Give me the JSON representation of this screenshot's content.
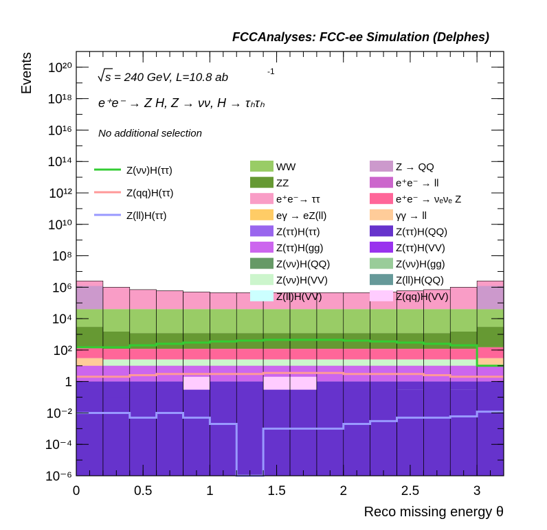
{
  "header_title": "FCCAnalyses: FCC-ee Simulation (Delphes)",
  "annotations": {
    "energy_prefix": "s",
    "energy_text": "= 240 GeV, L=10.8 ab",
    "lumi_exponent": "-1",
    "process_line": "e⁺e⁻ → Z H, Z → νν, H → τₕτₕ",
    "selection": "No additional selection"
  },
  "colors": {
    "WW": "#99cc66",
    "ZZ": "#669933",
    "ee_tautau": "#f99dc6",
    "egamma_eZll": "#ffcc66",
    "Ztautau_Htautau": "#9966ee",
    "Ztautau_Hgg": "#cc66ee",
    "Znunu_HQQ": "#669966",
    "Znunu_HVV": "#ccf5cc",
    "Zll_HVV": "#ccffff",
    "Z_QQ": "#cc99cc",
    "ee_ll": "#cc66cc",
    "ee_nunuZ": "#ff6699",
    "gammagamma_ll": "#ffcc99",
    "Ztautau_HQQ": "#6633cc",
    "Ztautau_HVV": "#9933ee",
    "Znunu_Hgg": "#99cc99",
    "Zll_HQQ": "#669999",
    "Zqq_HVV": "#ffccff",
    "Zqq_Htautau": "#ff9999",
    "Zll_Htautau": "#9999ff",
    "Znunu_Htautau": "#33cc33"
  },
  "chart_data": {
    "type": "histogram-stacked",
    "title": "FCCAnalyses: FCC-ee Simulation (Delphes)",
    "xlabel": "Reco missing energy θ",
    "ylabel": "Events",
    "xlim": [
      0,
      3.2
    ],
    "ylim": [
      1e-06,
      1e+21
    ],
    "log_y": true,
    "bin_edges": [
      0,
      0.2,
      0.4,
      0.6,
      0.8,
      1.0,
      1.2,
      1.4,
      1.6,
      1.8,
      2.0,
      2.2,
      2.4,
      2.6,
      2.8,
      3.0,
      3.2
    ],
    "x_ticks": [
      "0",
      "0.5",
      "1",
      "1.5",
      "2",
      "2.5",
      "3"
    ],
    "x_tick_values": [
      0,
      0.5,
      1,
      1.5,
      2,
      2.5,
      3
    ],
    "y_ticks": [
      "10⁻⁶",
      "10⁻⁴",
      "10⁻²",
      "1",
      "10²",
      "10⁴",
      "10⁶",
      "10⁸",
      "10¹⁰",
      "10¹²",
      "10¹⁴",
      "10¹⁶",
      "10¹⁸",
      "10²⁰"
    ],
    "y_tick_exponents": [
      -6,
      -4,
      -2,
      0,
      2,
      4,
      6,
      8,
      10,
      12,
      14,
      16,
      18,
      20
    ],
    "stack_total": [
      2500000.0,
      1000000.0,
      700000.0,
      600000.0,
      500000.0,
      450000.0,
      450000.0,
      450000.0,
      450000.0,
      450000.0,
      450000.0,
      500000.0,
      600000.0,
      700000.0,
      1000000.0,
      2500000.0
    ],
    "stack_boundaries_top": [
      [
        40000.0,
        40000.0,
        40000.0,
        40000.0,
        40000.0,
        40000.0,
        40000.0,
        40000.0,
        40000.0,
        40000.0,
        40000.0,
        40000.0,
        40000.0,
        40000.0,
        40000.0,
        40000.0
      ],
      [
        3000.0,
        1500.0,
        1200.0,
        1200.0,
        1200.0,
        1200.0,
        1200.0,
        1200.0,
        1200.0,
        1200.0,
        1200.0,
        1200.0,
        1200.0,
        1200.0,
        1500.0,
        3000.0
      ],
      [
        150,
        120,
        120,
        120,
        120,
        120,
        120,
        120,
        120,
        120,
        120,
        120,
        120,
        120,
        120,
        150
      ],
      [
        30,
        25,
        25,
        25,
        25,
        25,
        25,
        25,
        25,
        25,
        25,
        25,
        25,
        25,
        25,
        30
      ],
      [
        15,
        10,
        10,
        10,
        10,
        10,
        10,
        10,
        10,
        10,
        10,
        10,
        10,
        10,
        10,
        15
      ]
    ],
    "legend_lines": [
      "Z(qq)H(ττ)",
      "Z(ll)H(ττ)",
      "Z(νν)H(ττ)"
    ],
    "legend_boxes": [
      {
        "label": "WW",
        "color_key": "WW"
      },
      {
        "label": "Z → QQ",
        "color_key": "Z_QQ"
      },
      {
        "label": "ZZ",
        "color_key": "ZZ"
      },
      {
        "label": "e⁺e⁻ → ll",
        "color_key": "ee_ll"
      },
      {
        "label": "e⁺e⁻→ ττ",
        "color_key": "ee_tautau"
      },
      {
        "label": "e⁺e⁻ → νₑνₑ Z",
        "color_key": "ee_nunuZ"
      },
      {
        "label": "eγ → eZ(ll)",
        "color_key": "egamma_eZll"
      },
      {
        "label": "γγ → ll",
        "color_key": "gammagamma_ll"
      },
      {
        "label": "Z(ττ)H(ττ)",
        "color_key": "Ztautau_Htautau"
      },
      {
        "label": "Z(ττ)H(QQ)",
        "color_key": "Ztautau_HQQ"
      },
      {
        "label": "Z(ττ)H(gg)",
        "color_key": "Ztautau_Hgg"
      },
      {
        "label": "Z(ττ)H(VV)",
        "color_key": "Ztautau_HVV"
      },
      {
        "label": "Z(νν)H(QQ)",
        "color_key": "Znunu_HQQ"
      },
      {
        "label": "Z(νν)H(gg)",
        "color_key": "Znunu_Hgg"
      },
      {
        "label": "Z(νν)H(VV)",
        "color_key": "Znunu_HVV"
      },
      {
        "label": "Z(ll)H(QQ)",
        "color_key": "Zll_HQQ"
      },
      {
        "label": "Z(ll)H(VV)",
        "color_key": "Zll_HVV"
      },
      {
        "label": "Z(qq)H(VV)",
        "color_key": "Zqq_HVV"
      }
    ],
    "series": [
      {
        "name": "Z(νν)H(ττ)",
        "color_key": "Znunu_Htautau",
        "values": [
          150,
          150,
          200,
          250,
          300,
          350,
          400,
          450,
          450,
          450,
          400,
          350,
          300,
          250,
          200,
          10
        ]
      },
      {
        "name": "Z(qq)H(ττ)",
        "color_key": "Zqq_Htautau",
        "values": [
          2.0,
          2.0,
          2.5,
          3.0,
          3.0,
          3.0,
          3.0,
          3.5,
          3.5,
          3.5,
          3.0,
          3.0,
          3.0,
          2.5,
          2.0,
          2.0
        ]
      },
      {
        "name": "Z(ll)H(ττ)",
        "color_key": "Zll_Htautau",
        "values": [
          0.01,
          0.01,
          0.005,
          0.01,
          0.005,
          0.002,
          1e-06,
          0.001,
          0.001,
          0.001,
          0.002,
          0.003,
          0.005,
          0.005,
          0.006,
          0.012
        ]
      }
    ],
    "bottom_stack_top": [
      0.02,
      0.0002,
      0.3,
      0.03,
      0.3,
      0.03,
      0.03,
      0.03,
      0.3,
      0.03,
      0.03,
      0.03,
      0.03,
      0.3,
      0.03,
      0.03
    ],
    "lower_layers": [
      {
        "color_key": "Zll_HQQ",
        "values": [
          0.02,
          0.0002,
          1e-06,
          1e-06,
          1e-06,
          1e-06,
          1e-06,
          1e-06,
          1e-06,
          1e-06,
          1e-06,
          1e-06,
          1e-06,
          1e-06,
          1e-06,
          1e-06
        ]
      },
      {
        "color_key": "Zll_HVV",
        "values": [
          0.01,
          1e-06,
          1e-06,
          0.02,
          1e-06,
          1e-06,
          0.02,
          1e-06,
          1e-06,
          1e-06,
          0.05,
          0.05,
          0.3,
          1e-06,
          0.3,
          1e-06
        ]
      },
      {
        "color_key": "Ztautau_Hgg",
        "values": [
          0.01,
          1e-06,
          0.03,
          1e-06,
          1e-06,
          0.03,
          1e-06,
          1e-06,
          1e-06,
          1e-06,
          1e-06,
          1e-06,
          1e-06,
          0.1,
          1e-06,
          0.03
        ]
      },
      {
        "color_key": "Zqq_HVV",
        "values": [
          1e-06,
          1e-06,
          1e-06,
          1e-06,
          2,
          1e-06,
          1e-06,
          2,
          2,
          1e-06,
          1e-06,
          1e-06,
          1e-06,
          1e-06,
          1e-06,
          1e-06
        ]
      },
      {
        "color_key": "Ztautau_HQQ",
        "values": [
          0.3,
          0.1,
          0.3,
          0.3,
          0.3,
          0.3,
          0.3,
          0.3,
          0.3,
          0.3,
          0.3,
          0.3,
          0.3,
          0.3,
          0.3,
          0.3
        ]
      }
    ]
  }
}
